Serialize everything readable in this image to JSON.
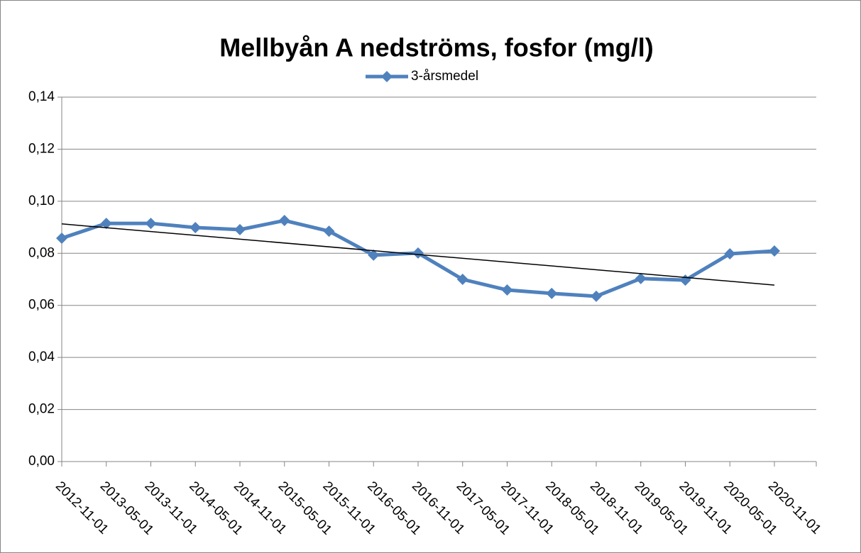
{
  "chart_data": {
    "type": "line",
    "title": "Mellbyån A nedströms, fosfor (mg/l)",
    "categories": [
      "2012-11-01",
      "2013-05-01",
      "2013-11-01",
      "2014-05-01",
      "2014-11-01",
      "2015-05-01",
      "2015-11-01",
      "2016-05-01",
      "2016-11-01",
      "2017-05-01",
      "2017-11-01",
      "2018-05-01",
      "2018-11-01",
      "2019-05-01",
      "2019-11-01",
      "2020-05-01",
      "2020-11-01"
    ],
    "series": [
      {
        "name": "3-årsmedel",
        "color": "#4f81bd",
        "values": [
          0.0858,
          0.0915,
          0.0915,
          0.0899,
          0.0891,
          0.0926,
          0.0885,
          0.0793,
          0.0801,
          0.07,
          0.0659,
          0.0646,
          0.0635,
          0.0703,
          0.0697,
          0.0798,
          0.0809
        ]
      }
    ],
    "trendline": {
      "color": "#000000",
      "values": [
        0.0913,
        0.0678
      ]
    },
    "ylim": [
      0,
      0.14
    ],
    "yticks": [
      {
        "value": 0,
        "label": "0,00"
      },
      {
        "value": 0.02,
        "label": "0,02"
      },
      {
        "value": 0.04,
        "label": "0,04"
      },
      {
        "value": 0.06,
        "label": "0,06"
      },
      {
        "value": 0.08,
        "label": "0,08"
      },
      {
        "value": 0.1,
        "label": "0,10"
      },
      {
        "value": 0.12,
        "label": "0,12"
      },
      {
        "value": 0.14,
        "label": "0,14"
      }
    ],
    "grid": true,
    "legend": "top"
  }
}
